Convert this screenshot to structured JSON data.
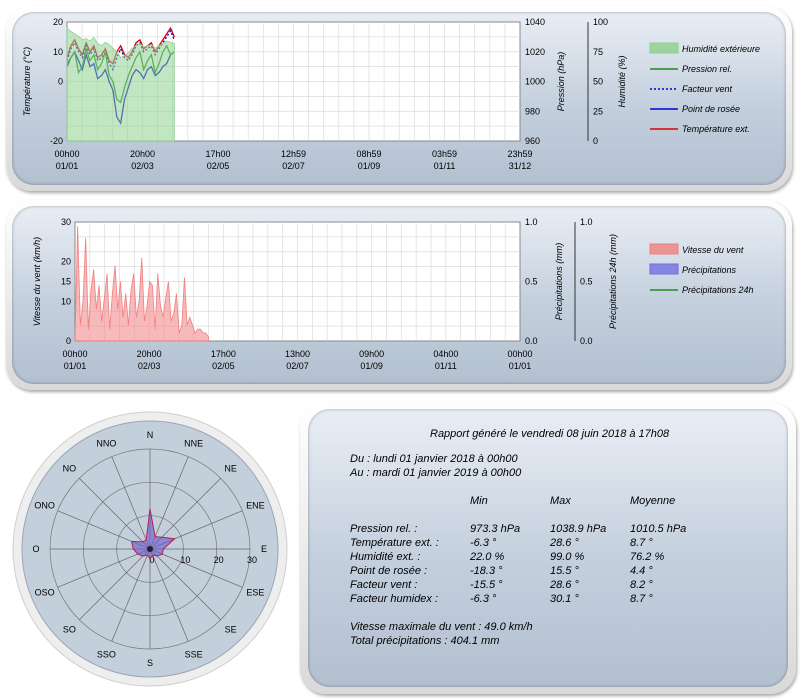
{
  "chart_data": [
    {
      "type": "line",
      "x_ticks": [
        {
          "time": "00h00",
          "date": "01/01"
        },
        {
          "time": "20h00",
          "date": "02/03"
        },
        {
          "time": "17h00",
          "date": "02/05"
        },
        {
          "time": "12h59",
          "date": "02/07"
        },
        {
          "time": "08h59",
          "date": "01/09"
        },
        {
          "time": "03h59",
          "date": "01/11"
        },
        {
          "time": "23h59",
          "date": "31/12"
        }
      ],
      "ylabel_left": "Température (°C)",
      "ylim_left": [
        -20,
        20
      ],
      "yticks_left": [
        -20,
        0,
        10,
        20
      ],
      "ylabel_mid": "Pression (hPa)",
      "ylim_mid": [
        960,
        1040
      ],
      "yticks_mid": [
        960,
        980,
        1000,
        1020,
        1040
      ],
      "ylabel_right": "Humidité (%)",
      "ylim_right": [
        0,
        100
      ],
      "yticks_right": [
        0,
        25,
        50,
        75,
        100
      ],
      "legend": [
        {
          "name": "Humidité extérieure",
          "style": "area",
          "color": "#8fd08f"
        },
        {
          "name": "Pression rel.",
          "style": "line",
          "color": "#1e8c1e"
        },
        {
          "name": "Facteur vent",
          "style": "dotted",
          "color": "#0000cc"
        },
        {
          "name": "Point de rosée",
          "style": "line",
          "color": "#0000dd"
        },
        {
          "name": "Température ext.",
          "style": "line",
          "color": "#dd0000"
        }
      ],
      "series": [
        {
          "name": "Température ext.",
          "axis": "left",
          "values": [
            8,
            12,
            14,
            11,
            9,
            13,
            10,
            12,
            8,
            9,
            11,
            7,
            6,
            10,
            12,
            9,
            8,
            10,
            13,
            14,
            11,
            12,
            13,
            10,
            12,
            14,
            16,
            18,
            15
          ]
        },
        {
          "name": "Point de rosée",
          "axis": "left",
          "values": [
            5,
            8,
            10,
            7,
            4,
            9,
            5,
            6,
            1,
            2,
            4,
            0,
            -3,
            -12,
            -14,
            -6,
            -2,
            2,
            4,
            3,
            1,
            4,
            5,
            2,
            3,
            5,
            6,
            9,
            10
          ]
        },
        {
          "name": "Facteur vent",
          "axis": "left",
          "values": [
            7,
            11,
            13,
            10,
            8,
            12,
            9,
            11,
            7,
            8,
            10,
            6,
            4,
            8,
            11,
            8,
            7,
            9,
            12,
            13,
            10,
            11,
            12,
            9,
            11,
            13,
            15,
            17,
            14
          ]
        },
        {
          "name": "Pression rel.",
          "axis": "mid",
          "values": [
            1012,
            1016,
            1020,
            1006,
            1010,
            1022,
            1014,
            1018,
            1008,
            1012,
            1020,
            1004,
            1000,
            988,
            986,
            996,
            1004,
            1010,
            1016,
            1020,
            1008,
            1014,
            1018,
            1006,
            1012,
            1020,
            1024,
            1018,
            1020
          ]
        },
        {
          "name": "Humidité extérieure",
          "axis": "right",
          "values": [
            95,
            92,
            90,
            88,
            85,
            86,
            84,
            87,
            82,
            80,
            83,
            81,
            78,
            75,
            70,
            72,
            74,
            78,
            80,
            82,
            79,
            80,
            81,
            78,
            80,
            82,
            84,
            83,
            82
          ]
        }
      ],
      "data_end_fraction": 0.237
    },
    {
      "type": "area",
      "x_ticks": [
        {
          "time": "00h00",
          "date": "01/01"
        },
        {
          "time": "20h00",
          "date": "02/03"
        },
        {
          "time": "17h00",
          "date": "02/05"
        },
        {
          "time": "13h00",
          "date": "02/07"
        },
        {
          "time": "09h00",
          "date": "01/09"
        },
        {
          "time": "04h00",
          "date": "01/11"
        },
        {
          "time": "00h00",
          "date": "01/01"
        }
      ],
      "ylabel_left": "Vitesse du vent (km/h)",
      "ylim_left": [
        0,
        30
      ],
      "yticks_left": [
        0,
        10,
        15,
        20,
        30
      ],
      "ylabel_mid": "Précipitations (mm)",
      "ylim_mid": [
        0,
        1
      ],
      "yticks_mid": [
        "0.0",
        "0.5",
        "1.0"
      ],
      "ylabel_right": "Précipitations 24h (mm)",
      "ylim_right": [
        0,
        1
      ],
      "yticks_right": [
        "0.0",
        "0.5",
        "1.0"
      ],
      "legend": [
        {
          "name": "Vitesse du vent",
          "style": "area",
          "color": "#f08080"
        },
        {
          "name": "Précipitations",
          "style": "area",
          "color": "#7070e0"
        },
        {
          "name": "Précipitations 24h",
          "style": "line",
          "color": "#1e8c1e"
        }
      ],
      "series": [
        {
          "name": "Vitesse du vent",
          "axis": "left",
          "values": [
            0,
            29,
            4,
            10,
            26,
            3,
            13,
            18,
            8,
            14,
            5,
            11,
            17,
            3,
            12,
            19,
            8,
            15,
            6,
            12,
            4,
            13,
            17,
            6,
            10,
            21,
            5,
            9,
            15,
            14,
            3,
            17,
            9,
            6,
            11,
            15,
            5,
            7,
            12,
            2,
            4,
            16,
            4,
            6,
            4,
            2,
            3,
            3,
            2,
            2,
            1
          ]
        }
      ],
      "data_end_fraction": 0.3
    }
  ],
  "compass": {
    "directions": [
      "N",
      "NNE",
      "NE",
      "ENE",
      "E",
      "ESE",
      "SE",
      "SSE",
      "S",
      "SSO",
      "SO",
      "OSO",
      "O",
      "ONO",
      "NO",
      "NNO"
    ],
    "rings": [
      "0",
      "10",
      "20",
      "30"
    ],
    "rmax": 30,
    "values": [
      12,
      4,
      5,
      8,
      4,
      4,
      3,
      2,
      3,
      2,
      3,
      4,
      5,
      6,
      3,
      3
    ]
  },
  "report": {
    "title": "Rapport généré le vendredi 08 juin 2018 à 17h08",
    "from": "Du : lundi 01 janvier 2018 à 00h00",
    "to": "Au : mardi 01 janvier 2019 à 00h00",
    "headers": [
      "Min",
      "Max",
      "Moyenne"
    ],
    "rows": [
      {
        "label": "Pression rel. :",
        "min": "973.3 hPa",
        "max": "1038.9 hPa",
        "avg": "1010.5 hPa"
      },
      {
        "label": "Température ext. :",
        "min": "-6.3 °",
        "max": "28.6 °",
        "avg": "8.7 °"
      },
      {
        "label": "Humidité ext. :",
        "min": "22.0 %",
        "max": "99.0 %",
        "avg": "76.2 %"
      },
      {
        "label": "Point de rosée :",
        "min": "-18.3 °",
        "max": "15.5 °",
        "avg": "4.4 °"
      },
      {
        "label": "Facteur vent :",
        "min": "-15.5 °",
        "max": "28.6 °",
        "avg": "8.2 °"
      },
      {
        "label": "Facteur humidex :",
        "min": "-6.3 °",
        "max": "30.1 °",
        "avg": "8.7 °"
      }
    ],
    "wind_max": "Vitesse maximale du vent : 49.0 km/h",
    "precip_total": "Total précipitations : 404.1 mm"
  }
}
